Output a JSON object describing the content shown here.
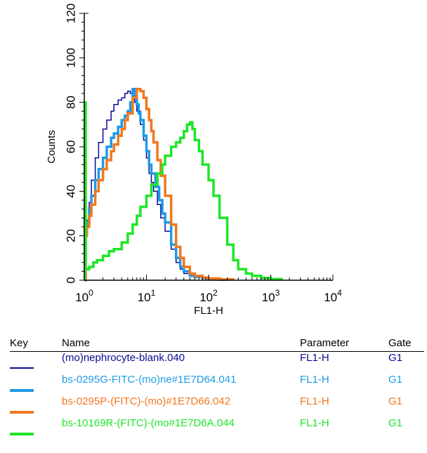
{
  "chart_data": {
    "type": "line",
    "xlabel": "FL1-H",
    "ylabel": "Counts",
    "xscale": "log",
    "xlim": [
      1,
      10000
    ],
    "ylim": [
      0,
      120
    ],
    "x_tick_labels": [
      {
        "value": 1,
        "base": "10",
        "exp": "0"
      },
      {
        "value": 10,
        "base": "10",
        "exp": "1"
      },
      {
        "value": 100,
        "base": "10",
        "exp": "2"
      },
      {
        "value": 1000,
        "base": "10",
        "exp": "3"
      },
      {
        "value": 10000,
        "base": "10",
        "exp": "4"
      }
    ],
    "y_ticks": [
      0,
      20,
      40,
      60,
      80,
      100,
      120
    ],
    "series": [
      {
        "name": "(mo)nephrocyte-blank.040",
        "color": "#0a0a96",
        "width": 1.5,
        "x": [
          1,
          1.05,
          1.1,
          1.2,
          1.3,
          1.5,
          1.7,
          2,
          2.3,
          2.7,
          3,
          3.5,
          4,
          4.5,
          5,
          5.5,
          6,
          6.5,
          7,
          8,
          9,
          10,
          11,
          12,
          13,
          15,
          17,
          20,
          25,
          30,
          35,
          40,
          50,
          60,
          80,
          100,
          130,
          200
        ],
        "y": [
          0,
          22,
          27,
          35,
          45,
          55,
          62,
          68,
          72,
          76,
          79,
          81,
          82,
          84,
          85,
          84,
          82,
          80,
          76,
          70,
          63,
          55,
          48,
          44,
          40,
          34,
          28,
          22,
          14,
          8,
          5,
          3,
          2,
          1.5,
          1,
          0.8,
          0.5,
          0
        ]
      },
      {
        "name": "bs-0295G-FITC-(mo)ne#1E7D64.041",
        "color": "#1e9be6",
        "width": 3.5,
        "x": [
          1,
          1.05,
          1.1,
          1.2,
          1.3,
          1.5,
          1.7,
          2,
          2.3,
          2.7,
          3,
          3.5,
          4,
          4.5,
          5,
          5.5,
          6,
          6.5,
          7,
          7.5,
          8,
          9,
          10,
          11,
          12,
          14,
          16,
          18,
          20,
          25,
          30,
          35,
          40,
          50,
          60,
          80,
          100,
          150,
          200
        ],
        "y": [
          0,
          22,
          26,
          32,
          38,
          45,
          50,
          55,
          60,
          64,
          66,
          69,
          72,
          74,
          76,
          80,
          86,
          83,
          79,
          75,
          72,
          65,
          58,
          52,
          48,
          42,
          36,
          30,
          26,
          16,
          10,
          6,
          4,
          2,
          1.5,
          1,
          0.6,
          0.3,
          0
        ]
      },
      {
        "name": "bs-0295P-(FITC)-(mo)#1E7D66.042",
        "color": "#f07820",
        "width": 3.5,
        "x": [
          1,
          1.05,
          1.1,
          1.2,
          1.3,
          1.5,
          1.7,
          2,
          2.3,
          2.7,
          3,
          3.5,
          4,
          4.5,
          5,
          6,
          7,
          8,
          9,
          10,
          11,
          12,
          13,
          15,
          17,
          20,
          25,
          30,
          35,
          40,
          50,
          60,
          80,
          100,
          150,
          250
        ],
        "y": [
          0,
          20,
          24,
          29,
          34,
          40,
          45,
          50,
          54,
          58,
          61,
          65,
          68,
          72,
          75,
          82,
          86,
          85,
          82,
          77,
          72,
          67,
          62,
          54,
          47,
          38,
          25,
          15,
          10,
          6,
          3,
          2,
          1.2,
          0.8,
          0.4,
          0
        ]
      },
      {
        "name": "bs-10169R-(FITC)-(mo#1E7D6A.044",
        "color": "#1ee628",
        "width": 3.5,
        "x": [
          1,
          1.02,
          1.05,
          1.1,
          1.2,
          1.4,
          1.6,
          2,
          2.5,
          3,
          4,
          5,
          6,
          7,
          8,
          10,
          12,
          15,
          18,
          20,
          25,
          30,
          35,
          40,
          45,
          50,
          55,
          60,
          70,
          80,
          100,
          120,
          150,
          200,
          250,
          300,
          400,
          500,
          700,
          1000,
          1500
        ],
        "y": [
          0,
          80,
          5,
          5,
          6,
          8,
          9,
          11,
          13,
          14,
          17,
          21,
          25,
          29,
          33,
          38,
          43,
          48,
          52,
          56,
          60,
          62,
          64,
          67,
          70,
          71,
          68,
          63,
          58,
          52,
          45,
          38,
          28,
          16,
          9,
          5,
          3,
          2,
          1,
          0.5,
          0
        ]
      }
    ]
  },
  "legend": {
    "headers": {
      "key": "Key",
      "name": "Name",
      "parameter": "Parameter",
      "gate": "Gate"
    },
    "rows": [
      {
        "name": "(mo)nephrocyte-blank.040",
        "parameter": "FL1-H",
        "gate": "G1",
        "color": "#0a0a96",
        "swatch": 2
      },
      {
        "name": "bs-0295G-FITC-(mo)ne#1E7D64.041",
        "parameter": "FL1-H",
        "gate": "G1",
        "color": "#1e9be6",
        "swatch": 4
      },
      {
        "name": "bs-0295P-(FITC)-(mo)#1E7D66.042",
        "parameter": "FL1-H",
        "gate": "G1",
        "color": "#f07820",
        "swatch": 4
      },
      {
        "name": "bs-10169R-(FITC)-(mo#1E7D6A.044",
        "parameter": "FL1-H",
        "gate": "G1",
        "color": "#1ee628",
        "swatch": 4
      }
    ]
  }
}
